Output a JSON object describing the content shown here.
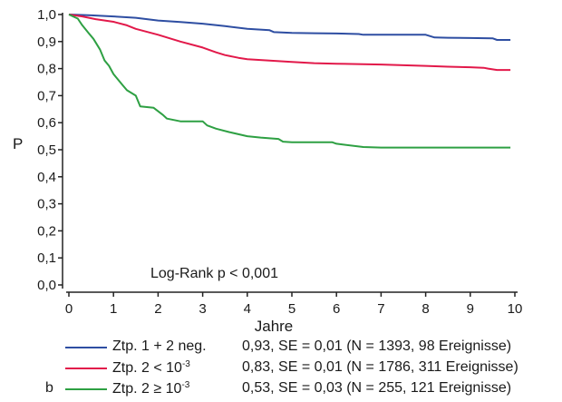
{
  "panel_label": "b",
  "colors": {
    "series1": "#2e4ea2",
    "series2": "#e2194a",
    "series3": "#2ea043",
    "axis": "#222222"
  },
  "chart_data": {
    "type": "line",
    "ylabel": "P",
    "xlabel": "Jahre",
    "xlim": [
      0,
      10
    ],
    "ylim": [
      0,
      1
    ],
    "x_ticks": [
      "0",
      "1",
      "2",
      "3",
      "4",
      "5",
      "6",
      "7",
      "8",
      "9",
      "10"
    ],
    "y_ticks": [
      "0,0",
      "0,1",
      "0,2",
      "0,3",
      "0,4",
      "0,5",
      "0,6",
      "0,7",
      "0,8",
      "0,9",
      "1,0"
    ],
    "annotation": "Log-Rank p < 0,001",
    "series": [
      {
        "name": "Ztp. 1 + 2 neg.",
        "color": "#2e4ea2",
        "points": [
          [
            0,
            1.0
          ],
          [
            0.5,
            0.997
          ],
          [
            1,
            0.993
          ],
          [
            1.5,
            0.988
          ],
          [
            2,
            0.978
          ],
          [
            2.5,
            0.972
          ],
          [
            3,
            0.966
          ],
          [
            3.5,
            0.957
          ],
          [
            4,
            0.947
          ],
          [
            4.5,
            0.942
          ],
          [
            4.6,
            0.935
          ],
          [
            5,
            0.932
          ],
          [
            5.5,
            0.931
          ],
          [
            6,
            0.93
          ],
          [
            6.5,
            0.928
          ],
          [
            6.6,
            0.925
          ],
          [
            7,
            0.925
          ],
          [
            7.5,
            0.925
          ],
          [
            8,
            0.925
          ],
          [
            8.2,
            0.915
          ],
          [
            8.5,
            0.914
          ],
          [
            9,
            0.913
          ],
          [
            9.5,
            0.912
          ],
          [
            9.6,
            0.906
          ],
          [
            9.9,
            0.906
          ]
        ]
      },
      {
        "name": "Ztp. 2 < 10-3",
        "color": "#e2194a",
        "points": [
          [
            0,
            1.0
          ],
          [
            0.3,
            0.993
          ],
          [
            0.6,
            0.983
          ],
          [
            1,
            0.973
          ],
          [
            1.3,
            0.96
          ],
          [
            1.5,
            0.947
          ],
          [
            2,
            0.925
          ],
          [
            2.5,
            0.9
          ],
          [
            3,
            0.878
          ],
          [
            3.3,
            0.86
          ],
          [
            3.5,
            0.85
          ],
          [
            3.8,
            0.84
          ],
          [
            4,
            0.835
          ],
          [
            4.5,
            0.83
          ],
          [
            5,
            0.825
          ],
          [
            5.5,
            0.82
          ],
          [
            6,
            0.818
          ],
          [
            7,
            0.815
          ],
          [
            8,
            0.81
          ],
          [
            8.5,
            0.807
          ],
          [
            9,
            0.805
          ],
          [
            9.3,
            0.803
          ],
          [
            9.4,
            0.8
          ],
          [
            9.6,
            0.795
          ],
          [
            9.9,
            0.795
          ]
        ]
      },
      {
        "name": "Ztp. 2 ≥ 10-3",
        "color": "#2ea043",
        "points": [
          [
            0,
            1.0
          ],
          [
            0.2,
            0.985
          ],
          [
            0.3,
            0.96
          ],
          [
            0.45,
            0.93
          ],
          [
            0.55,
            0.91
          ],
          [
            0.7,
            0.87
          ],
          [
            0.8,
            0.83
          ],
          [
            0.9,
            0.81
          ],
          [
            1,
            0.78
          ],
          [
            1.2,
            0.74
          ],
          [
            1.3,
            0.72
          ],
          [
            1.5,
            0.7
          ],
          [
            1.6,
            0.66
          ],
          [
            1.9,
            0.655
          ],
          [
            2.1,
            0.63
          ],
          [
            2.2,
            0.615
          ],
          [
            2.5,
            0.605
          ],
          [
            3,
            0.605
          ],
          [
            3.1,
            0.59
          ],
          [
            3.3,
            0.578
          ],
          [
            3.6,
            0.565
          ],
          [
            4,
            0.55
          ],
          [
            4.3,
            0.545
          ],
          [
            4.7,
            0.54
          ],
          [
            4.8,
            0.53
          ],
          [
            5,
            0.528
          ],
          [
            5.9,
            0.528
          ],
          [
            6,
            0.522
          ],
          [
            6.6,
            0.51
          ],
          [
            7,
            0.508
          ],
          [
            9.9,
            0.508
          ]
        ]
      }
    ]
  },
  "legend": [
    {
      "name_main": "Ztp. 1 + 2 neg.",
      "name_sup": "",
      "stats": "0,93, SE = 0,01 (N = 1393, 98 Ereignisse)",
      "color": "#2e4ea2"
    },
    {
      "name_main": "Ztp. 2 < 10",
      "name_sup": "-3",
      "stats": "0,83, SE = 0,01 (N = 1786, 311 Ereignisse)",
      "color": "#e2194a"
    },
    {
      "name_main": "Ztp. 2 ≥ 10",
      "name_sup": "-3",
      "stats": "0,53, SE = 0,03 (N = 255, 121 Ereignisse)",
      "color": "#2ea043"
    }
  ]
}
